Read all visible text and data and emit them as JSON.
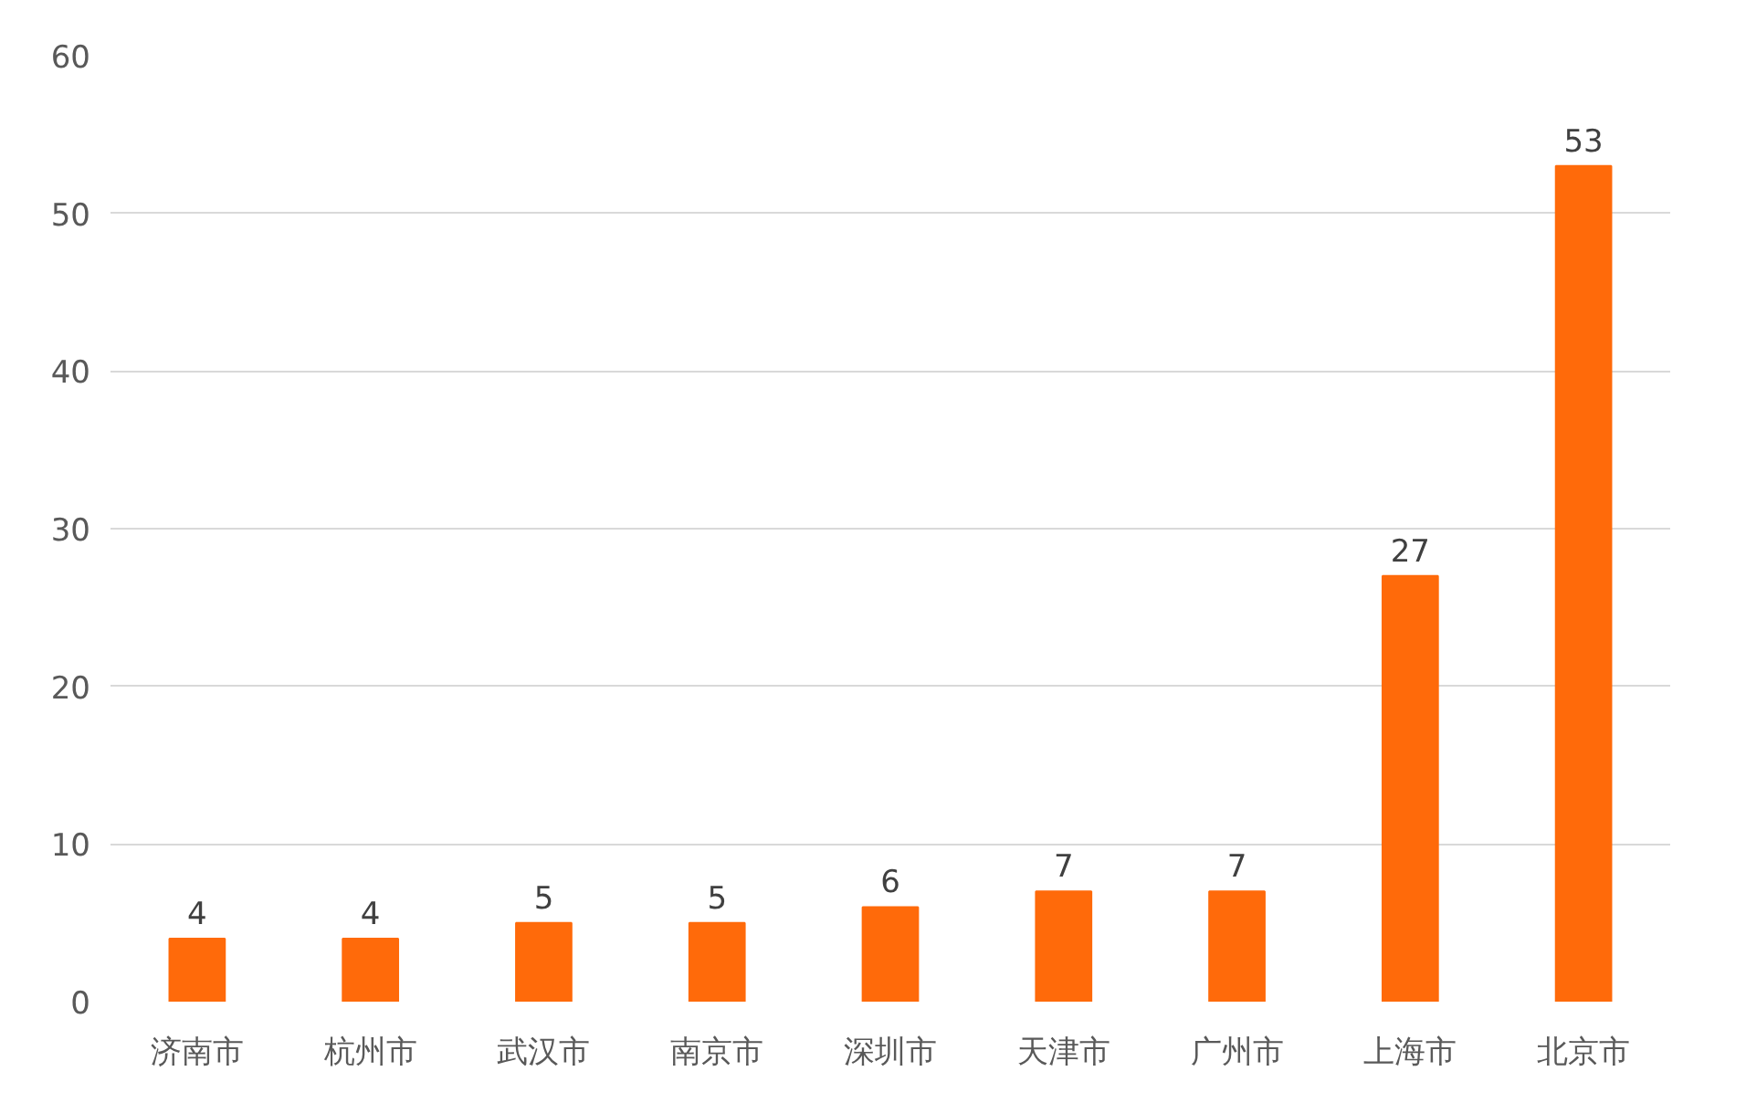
{
  "chart_data": {
    "type": "bar",
    "categories": [
      "济南市",
      "杭州市",
      "武汉市",
      "南京市",
      "深圳市",
      "天津市",
      "广州市",
      "上海市",
      "北京市"
    ],
    "values": [
      4,
      4,
      5,
      5,
      6,
      7,
      7,
      27,
      53
    ],
    "color": "#ff6a0a",
    "ylim": [
      0,
      60
    ],
    "yticks": [
      0,
      10,
      20,
      30,
      40,
      50,
      60
    ],
    "grid": "y",
    "data_labels": true
  }
}
